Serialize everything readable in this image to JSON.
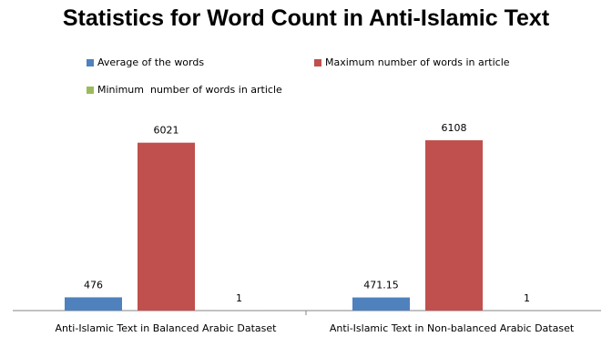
{
  "chart_data": {
    "type": "bar",
    "title": "Statistics for Word Count in Anti-Islamic Text",
    "categories": [
      "Anti-Islamic Text in Balanced Arabic Dataset",
      "Anti-Islamic Text in Non-balanced Arabic Dataset"
    ],
    "series": [
      {
        "name": "Average of the words",
        "color": "#4f81bd",
        "values": [
          476,
          471.15
        ],
        "labels": [
          "476",
          "471.15"
        ]
      },
      {
        "name": "Maximum number of words in article",
        "color": "#c0504d",
        "values": [
          6021,
          6108
        ],
        "labels": [
          "6021",
          "6108"
        ]
      },
      {
        "name": "Minimum  number of words in article",
        "color": "#9bbb59",
        "values": [
          1,
          1
        ],
        "labels": [
          "1",
          "1"
        ]
      }
    ],
    "ylim": [
      0,
      6108
    ],
    "grid": false,
    "legend_position": "top"
  }
}
